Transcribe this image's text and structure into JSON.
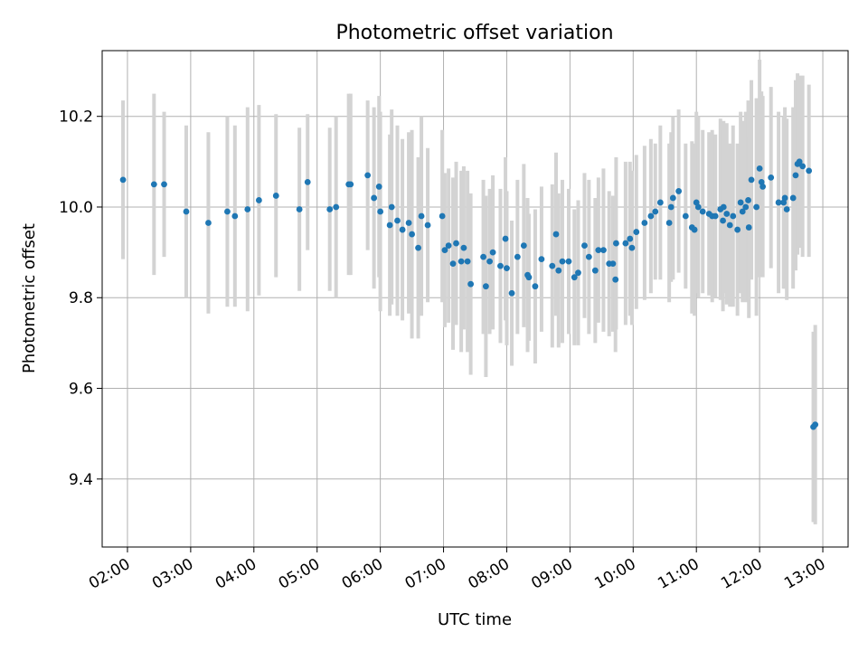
{
  "chart_data": {
    "type": "scatter",
    "title": "Photometric offset variation",
    "xlabel": "UTC time",
    "ylabel": "Photometric offset",
    "xlim": [
      1.6,
      13.4
    ],
    "ylim": [
      9.25,
      10.345
    ],
    "grid": true,
    "x_ticks": [
      2,
      3,
      4,
      5,
      6,
      7,
      8,
      9,
      10,
      11,
      12,
      13
    ],
    "x_tick_labels": [
      "02:00",
      "03:00",
      "04:00",
      "05:00",
      "06:00",
      "07:00",
      "08:00",
      "09:00",
      "10:00",
      "11:00",
      "12:00",
      "13:00"
    ],
    "y_ticks": [
      9.4,
      9.6,
      9.8,
      10.0,
      10.2
    ],
    "y_tick_labels": [
      "9.4",
      "9.6",
      "9.8",
      "10.0",
      "10.2"
    ],
    "colors": {
      "point": "#1f77b4",
      "errorbar": "#d3d3d3",
      "grid": "#b0b0b0"
    },
    "series": [
      {
        "name": "Photometric offset",
        "points": [
          [
            1.93,
            10.06,
            0.175
          ],
          [
            2.42,
            10.05,
            0.2
          ],
          [
            2.58,
            10.05,
            0.16
          ],
          [
            2.93,
            9.99,
            0.19
          ],
          [
            3.28,
            9.965,
            0.2
          ],
          [
            3.58,
            9.99,
            0.21
          ],
          [
            3.7,
            9.98,
            0.2
          ],
          [
            3.9,
            9.995,
            0.225
          ],
          [
            4.08,
            10.015,
            0.21
          ],
          [
            4.35,
            10.025,
            0.18
          ],
          [
            4.72,
            9.995,
            0.18
          ],
          [
            4.85,
            10.055,
            0.15
          ],
          [
            5.2,
            9.995,
            0.18
          ],
          [
            5.3,
            10.0,
            0.2
          ],
          [
            5.5,
            10.05,
            0.2
          ],
          [
            5.53,
            10.05,
            0.2
          ],
          [
            5.8,
            10.07,
            0.165
          ],
          [
            5.9,
            10.02,
            0.2
          ],
          [
            5.98,
            10.045,
            0.2
          ],
          [
            6.0,
            9.99,
            0.22
          ],
          [
            6.15,
            9.96,
            0.2
          ],
          [
            6.18,
            10.0,
            0.215
          ],
          [
            6.27,
            9.97,
            0.21
          ],
          [
            6.35,
            9.95,
            0.2
          ],
          [
            6.45,
            9.965,
            0.2
          ],
          [
            6.5,
            9.94,
            0.23
          ],
          [
            6.6,
            9.91,
            0.2
          ],
          [
            6.65,
            9.98,
            0.22
          ],
          [
            6.75,
            9.96,
            0.17
          ],
          [
            6.98,
            9.98,
            0.19
          ],
          [
            7.02,
            9.905,
            0.17
          ],
          [
            7.08,
            9.915,
            0.17
          ],
          [
            7.15,
            9.875,
            0.19
          ],
          [
            7.2,
            9.92,
            0.18
          ],
          [
            7.28,
            9.88,
            0.2
          ],
          [
            7.32,
            9.91,
            0.18
          ],
          [
            7.38,
            9.88,
            0.2
          ],
          [
            7.43,
            9.83,
            0.2
          ],
          [
            7.63,
            9.89,
            0.17
          ],
          [
            7.67,
            9.825,
            0.2
          ],
          [
            7.73,
            9.88,
            0.16
          ],
          [
            7.78,
            9.9,
            0.17
          ],
          [
            7.9,
            9.87,
            0.17
          ],
          [
            7.98,
            9.93,
            0.18
          ],
          [
            8.0,
            9.865,
            0.17
          ],
          [
            8.08,
            9.81,
            0.16
          ],
          [
            8.17,
            9.89,
            0.17
          ],
          [
            8.27,
            9.915,
            0.18
          ],
          [
            8.33,
            9.85,
            0.17
          ],
          [
            8.35,
            9.845,
            0.14
          ],
          [
            8.45,
            9.825,
            0.17
          ],
          [
            8.55,
            9.885,
            0.16
          ],
          [
            8.72,
            9.87,
            0.18
          ],
          [
            8.78,
            9.94,
            0.18
          ],
          [
            8.82,
            9.86,
            0.17
          ],
          [
            8.88,
            9.88,
            0.18
          ],
          [
            8.98,
            9.88,
            0.16
          ],
          [
            9.07,
            9.845,
            0.15
          ],
          [
            9.13,
            9.855,
            0.16
          ],
          [
            9.23,
            9.915,
            0.16
          ],
          [
            9.3,
            9.89,
            0.17
          ],
          [
            9.4,
            9.86,
            0.16
          ],
          [
            9.45,
            9.905,
            0.16
          ],
          [
            9.53,
            9.905,
            0.18
          ],
          [
            9.62,
            9.875,
            0.16
          ],
          [
            9.68,
            9.875,
            0.15
          ],
          [
            9.72,
            9.84,
            0.16
          ],
          [
            9.73,
            9.92,
            0.19
          ],
          [
            9.88,
            9.92,
            0.18
          ],
          [
            9.95,
            9.93,
            0.17
          ],
          [
            9.98,
            9.91,
            0.17
          ],
          [
            10.05,
            9.945,
            0.17
          ],
          [
            10.18,
            9.965,
            0.17
          ],
          [
            10.28,
            9.98,
            0.17
          ],
          [
            10.35,
            9.99,
            0.15
          ],
          [
            10.43,
            10.01,
            0.17
          ],
          [
            10.57,
            9.965,
            0.175
          ],
          [
            10.6,
            10.0,
            0.165
          ],
          [
            10.63,
            10.02,
            0.18
          ],
          [
            10.72,
            10.035,
            0.18
          ],
          [
            10.83,
            9.98,
            0.16
          ],
          [
            10.93,
            9.955,
            0.19
          ],
          [
            10.97,
            9.95,
            0.19
          ],
          [
            11.0,
            10.01,
            0.2
          ],
          [
            11.03,
            10.0,
            0.2
          ],
          [
            11.1,
            9.99,
            0.18
          ],
          [
            11.2,
            9.985,
            0.18
          ],
          [
            11.25,
            9.98,
            0.19
          ],
          [
            11.3,
            9.98,
            0.18
          ],
          [
            11.38,
            9.995,
            0.2
          ],
          [
            11.42,
            9.97,
            0.2
          ],
          [
            11.43,
            10.0,
            0.19
          ],
          [
            11.48,
            9.985,
            0.2
          ],
          [
            11.53,
            9.96,
            0.18
          ],
          [
            11.58,
            9.98,
            0.2
          ],
          [
            11.65,
            9.95,
            0.19
          ],
          [
            11.7,
            10.01,
            0.2
          ],
          [
            11.73,
            9.99,
            0.2
          ],
          [
            11.78,
            10.0,
            0.21
          ],
          [
            11.82,
            10.015,
            0.22
          ],
          [
            11.83,
            9.955,
            0.2
          ],
          [
            11.87,
            10.06,
            0.22
          ],
          [
            11.95,
            10.0,
            0.24
          ],
          [
            12.0,
            10.085,
            0.24
          ],
          [
            12.03,
            10.055,
            0.2
          ],
          [
            12.05,
            10.045,
            0.2
          ],
          [
            12.18,
            10.065,
            0.2
          ],
          [
            12.3,
            10.01,
            0.2
          ],
          [
            12.38,
            10.01,
            0.19
          ],
          [
            12.4,
            10.02,
            0.2
          ],
          [
            12.43,
            9.995,
            0.2
          ],
          [
            12.53,
            10.02,
            0.2
          ],
          [
            12.57,
            10.07,
            0.21
          ],
          [
            12.6,
            10.095,
            0.2
          ],
          [
            12.63,
            10.1,
            0.19
          ],
          [
            12.68,
            10.09,
            0.2
          ],
          [
            12.78,
            10.08,
            0.19
          ],
          [
            12.85,
            9.515,
            0.21
          ],
          [
            12.88,
            9.52,
            0.22
          ]
        ]
      }
    ]
  }
}
